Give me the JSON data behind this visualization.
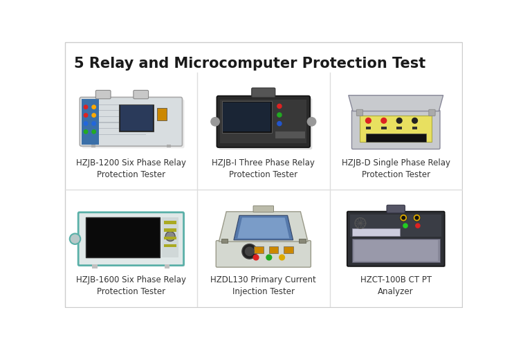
{
  "title": "5 Relay and Microcomputer Protection Test",
  "title_fontsize": 15,
  "title_fontweight": "bold",
  "background_color": "#ffffff",
  "border_color": "#cccccc",
  "label_fontsize": 8.5,
  "label_color": "#333333",
  "products": [
    {
      "label": "HZJB-1200 Six Phase Relay\nProtection Tester",
      "col": 0,
      "row": 0
    },
    {
      "label": "HZJB-I Three Phase Relay\nProtection Tester",
      "col": 1,
      "row": 0
    },
    {
      "label": "HZJB-D Single Phase Relay\nProtection Tester",
      "col": 2,
      "row": 0
    },
    {
      "label": "HZJB-1600 Six Phase Relay\nProtection Tester",
      "col": 0,
      "row": 1
    },
    {
      "label": "HZDL130 Primary Current\nInjection Tester",
      "col": 1,
      "row": 1
    },
    {
      "label": "HZCT-100B CT PT\nAnalyzer",
      "col": 2,
      "row": 1
    }
  ],
  "grid_cols": 3,
  "grid_rows": 2,
  "divider_color": "#dddddd"
}
